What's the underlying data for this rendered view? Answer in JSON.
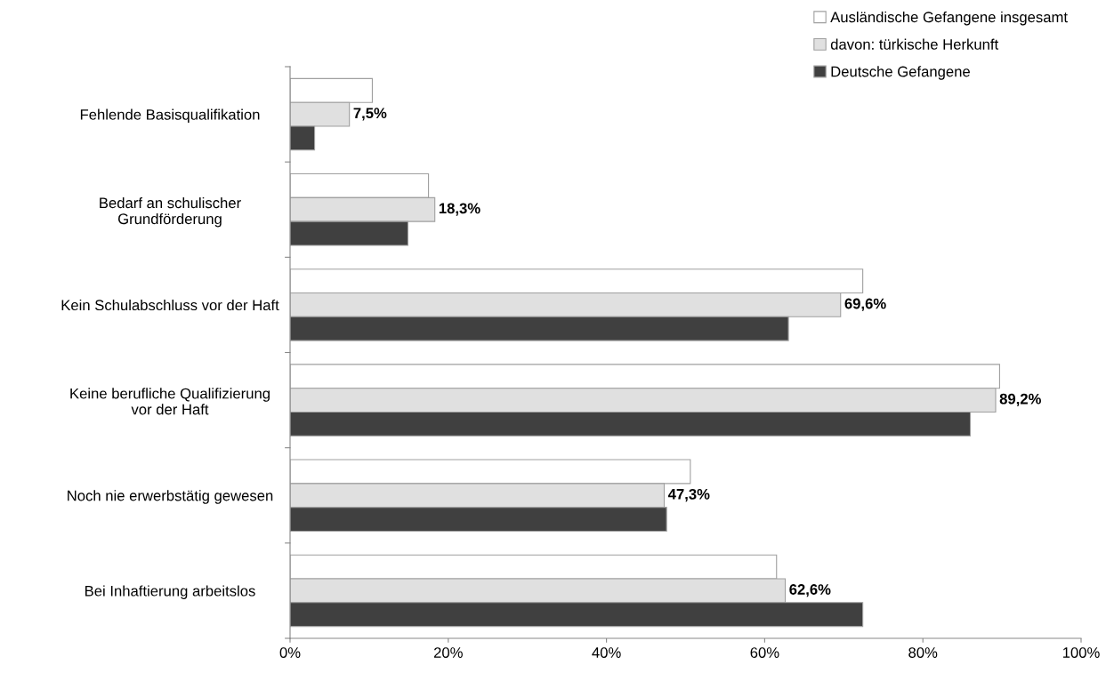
{
  "chart_data": {
    "type": "bar",
    "orientation": "horizontal",
    "categories": [
      "Fehlende Basisqualifikation",
      "Bedarf an schulischer\nGrundförderung",
      "Kein Schulabschluss vor der Haft",
      "Keine berufliche Qualifizierung\nvor der Haft",
      "Noch nie erwerbstätig gewesen",
      "Bei Inhaftierung arbeitslos"
    ],
    "series": [
      {
        "name": "Ausländische Gefangene insgesamt",
        "color": "#ffffff",
        "values": [
          10.4,
          17.5,
          72.4,
          89.7,
          50.6,
          61.5
        ]
      },
      {
        "name": "davon: türkische Herkunft",
        "color": "#e0e0e0",
        "values": [
          7.5,
          18.3,
          69.6,
          89.2,
          47.3,
          62.6
        ],
        "value_labels": [
          "7,5%",
          "18,3%",
          "69,6%",
          "89,2%",
          "47,3%",
          "62,6%"
        ]
      },
      {
        "name": "Deutsche Gefangene",
        "color": "#404040",
        "values": [
          3.1,
          14.9,
          63.0,
          86.0,
          47.6,
          72.4
        ]
      }
    ],
    "xlim": [
      0,
      100
    ],
    "xticks": [
      {
        "value": 0,
        "label": "0%"
      },
      {
        "value": 20,
        "label": "20%"
      },
      {
        "value": 40,
        "label": "40%"
      },
      {
        "value": 60,
        "label": "60%"
      },
      {
        "value": 80,
        "label": "80%"
      },
      {
        "value": 100,
        "label": "100%"
      }
    ],
    "legend": "top right",
    "grid": false
  }
}
